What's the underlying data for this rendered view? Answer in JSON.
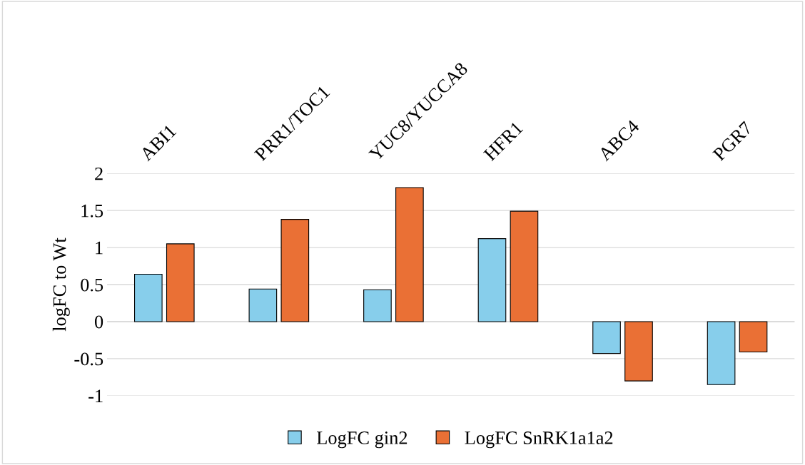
{
  "chart_data": {
    "type": "bar",
    "ylabel": "logFC to Wt",
    "categories": [
      "ABI1",
      "PRR1/TOC1",
      "YUC8/YUCCA8",
      "HFR1",
      "ABC4",
      "PGR7"
    ],
    "series": [
      {
        "name": "LogFC gin2",
        "color": "#87ceeb",
        "values": [
          0.64,
          0.44,
          0.43,
          1.12,
          -0.43,
          -0.85
        ]
      },
      {
        "name": "LogFC SnRK1a1a2",
        "color": "#ea7035",
        "values": [
          1.05,
          1.38,
          1.81,
          1.49,
          -0.8,
          -0.41
        ]
      }
    ],
    "ylim": [
      -1,
      2
    ],
    "yticks": [
      -1,
      -0.5,
      0,
      0.5,
      1,
      1.5,
      2
    ],
    "grid": "y",
    "legend": "bottom"
  }
}
